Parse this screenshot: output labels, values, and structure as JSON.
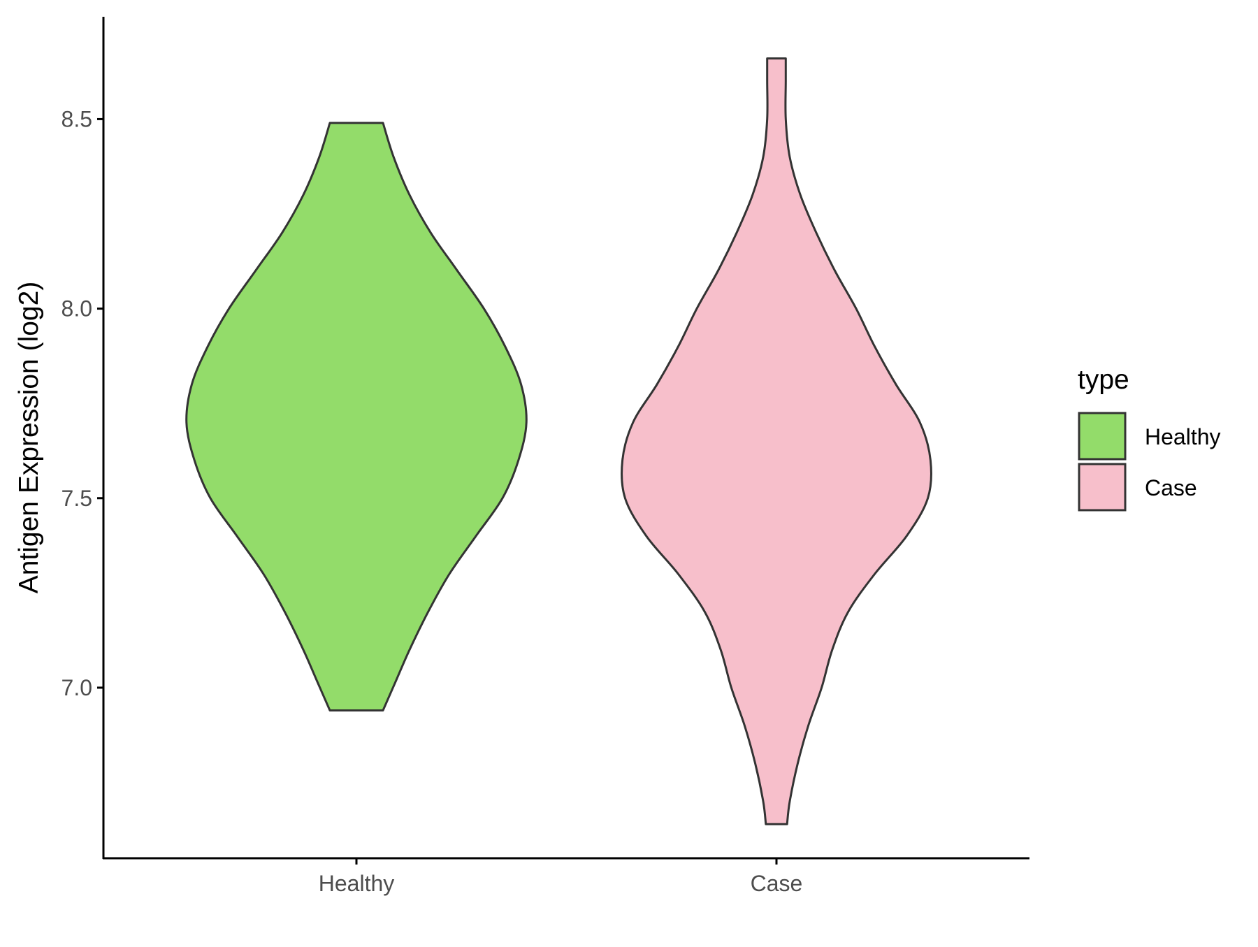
{
  "chart_data": {
    "type": "violin",
    "title": "",
    "xlabel": "",
    "ylabel": "Antigen Expression (log2)",
    "ylim": [
      6.55,
      8.77
    ],
    "yticks": [
      7.0,
      7.5,
      8.0,
      8.5
    ],
    "ytick_labels": [
      "7.0",
      "7.5",
      "8.0",
      "8.5"
    ],
    "categories": [
      "Healthy",
      "Case"
    ],
    "grid": false,
    "legend": {
      "title": "type",
      "position": "right",
      "entries": [
        {
          "label": "Healthy",
          "color": "#93DC6A"
        },
        {
          "label": "Case",
          "color": "#F7BFCB"
        }
      ]
    },
    "outline_color": "#333333",
    "series": [
      {
        "name": "Healthy",
        "color": "#93DC6A",
        "min": 6.94,
        "max": 8.49,
        "profile": [
          [
            6.94,
            0.1
          ],
          [
            7.02,
            0.15
          ],
          [
            7.1,
            0.2
          ],
          [
            7.2,
            0.27
          ],
          [
            7.3,
            0.35
          ],
          [
            7.4,
            0.45
          ],
          [
            7.5,
            0.55
          ],
          [
            7.6,
            0.61
          ],
          [
            7.7,
            0.64
          ],
          [
            7.8,
            0.62
          ],
          [
            7.9,
            0.56
          ],
          [
            8.0,
            0.48
          ],
          [
            8.1,
            0.38
          ],
          [
            8.2,
            0.28
          ],
          [
            8.3,
            0.2
          ],
          [
            8.4,
            0.14
          ],
          [
            8.49,
            0.1
          ]
        ]
      },
      {
        "name": "Case",
        "color": "#F7BFCB",
        "min": 6.64,
        "max": 8.66,
        "profile": [
          [
            6.64,
            0.04
          ],
          [
            6.7,
            0.05
          ],
          [
            6.8,
            0.08
          ],
          [
            6.9,
            0.12
          ],
          [
            7.0,
            0.17
          ],
          [
            7.1,
            0.21
          ],
          [
            7.2,
            0.27
          ],
          [
            7.3,
            0.37
          ],
          [
            7.4,
            0.49
          ],
          [
            7.5,
            0.57
          ],
          [
            7.6,
            0.58
          ],
          [
            7.7,
            0.54
          ],
          [
            7.8,
            0.45
          ],
          [
            7.9,
            0.37
          ],
          [
            8.0,
            0.3
          ],
          [
            8.1,
            0.22
          ],
          [
            8.2,
            0.15
          ],
          [
            8.3,
            0.09
          ],
          [
            8.4,
            0.05
          ],
          [
            8.5,
            0.035
          ],
          [
            8.6,
            0.035
          ],
          [
            8.66,
            0.035
          ]
        ]
      }
    ]
  }
}
